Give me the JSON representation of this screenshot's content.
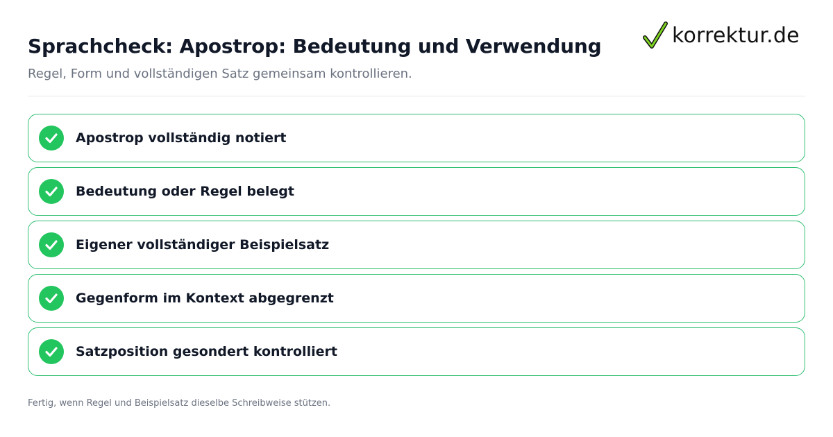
{
  "header": {
    "title": "Sprachcheck: Apostrop: Bedeutung und Verwendung",
    "subtitle": "Regel, Form und vollständigen Satz gemeinsam kontrollieren."
  },
  "logo": {
    "icon": "checkmark-icon",
    "text": "korrektur.de"
  },
  "checklist": {
    "items": [
      {
        "label": "Apostrop vollständig notiert",
        "checked": true
      },
      {
        "label": "Bedeutung oder Regel belegt",
        "checked": true
      },
      {
        "label": "Eigener vollständiger Beispielsatz",
        "checked": true
      },
      {
        "label": "Gegenform im Kontext abgegrenzt",
        "checked": true
      },
      {
        "label": "Satzposition gesondert kontrolliert",
        "checked": true
      }
    ]
  },
  "footer": {
    "note": "Fertig, wenn Regel und Beispielsatz dieselbe Schreibweise stützen."
  },
  "colors": {
    "accent_green": "#22c55e",
    "border_green": "#2fbf71",
    "title": "#111827",
    "muted": "#6b7280"
  }
}
